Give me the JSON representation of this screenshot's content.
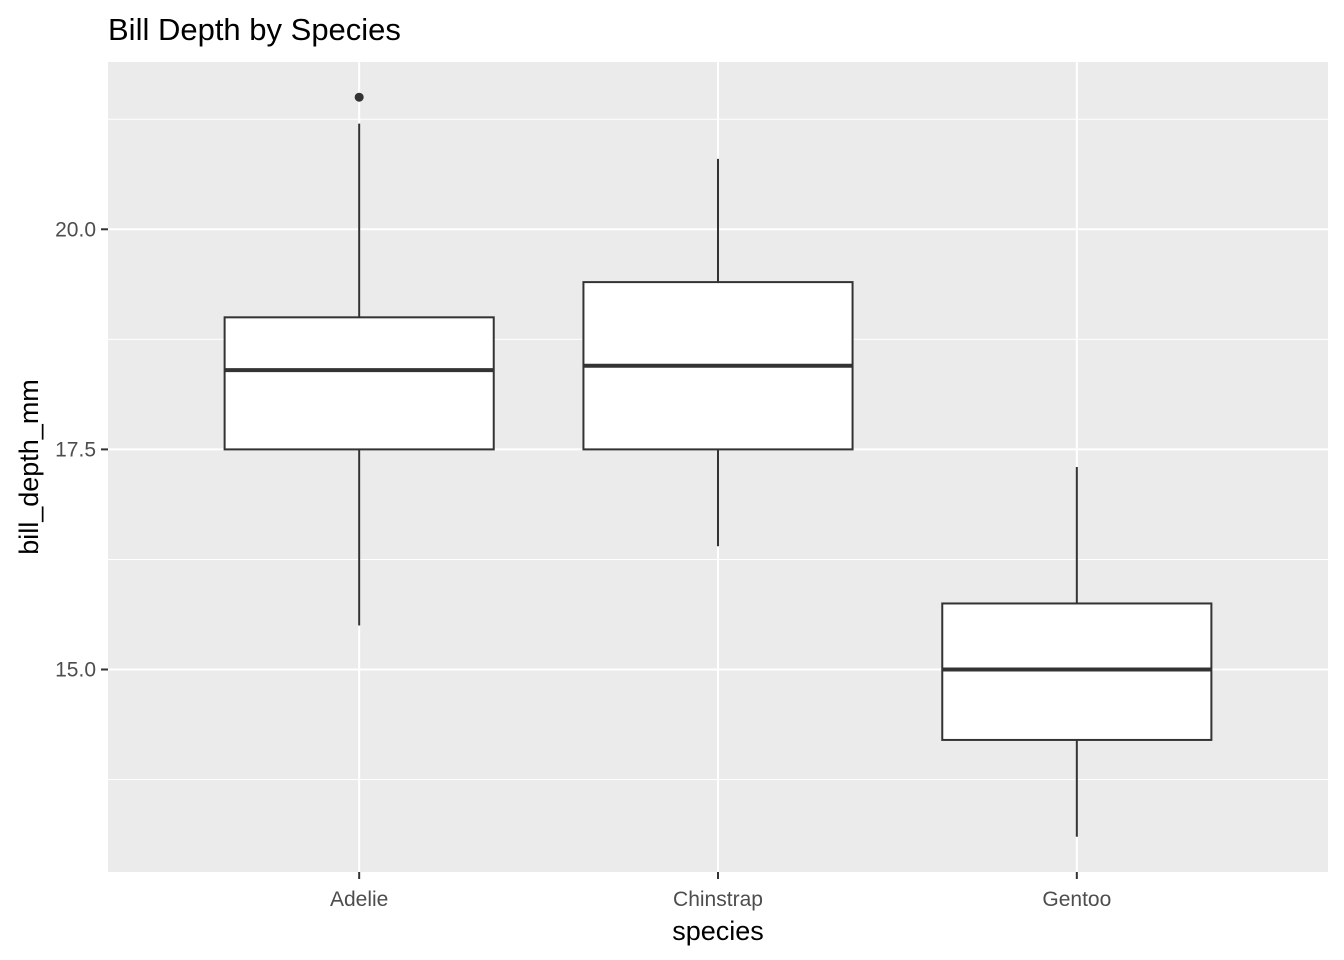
{
  "chart_data": {
    "type": "boxplot",
    "title": "Bill Depth by Species",
    "xlabel": "species",
    "ylabel": "bill_depth_mm",
    "ylim": [
      12.7,
      21.9
    ],
    "y_ticks": [
      15.0,
      17.5,
      20.0
    ],
    "y_tick_labels": [
      "15.0",
      "17.5",
      "20.0"
    ],
    "y_minor_ticks": [
      13.75,
      16.25,
      18.75,
      21.25
    ],
    "grid": true,
    "categories": [
      "Adelie",
      "Chinstrap",
      "Gentoo"
    ],
    "boxes": [
      {
        "category": "Adelie",
        "whisker_low": 15.5,
        "q1": 17.5,
        "median": 18.4,
        "q3": 19.0,
        "whisker_high": 21.2,
        "outliers": [
          21.5
        ]
      },
      {
        "category": "Chinstrap",
        "whisker_low": 16.4,
        "q1": 17.5,
        "median": 18.45,
        "q3": 19.4,
        "whisker_high": 20.8,
        "outliers": []
      },
      {
        "category": "Gentoo",
        "whisker_low": 13.1,
        "q1": 14.2,
        "median": 15.0,
        "q3": 15.75,
        "whisker_high": 17.3,
        "outliers": []
      }
    ],
    "colors": {
      "panel_background": "#ebebeb",
      "grid_major": "#ffffff",
      "grid_minor": "#f7f7f7",
      "box_fill": "#ffffff",
      "box_stroke": "#333333"
    }
  }
}
